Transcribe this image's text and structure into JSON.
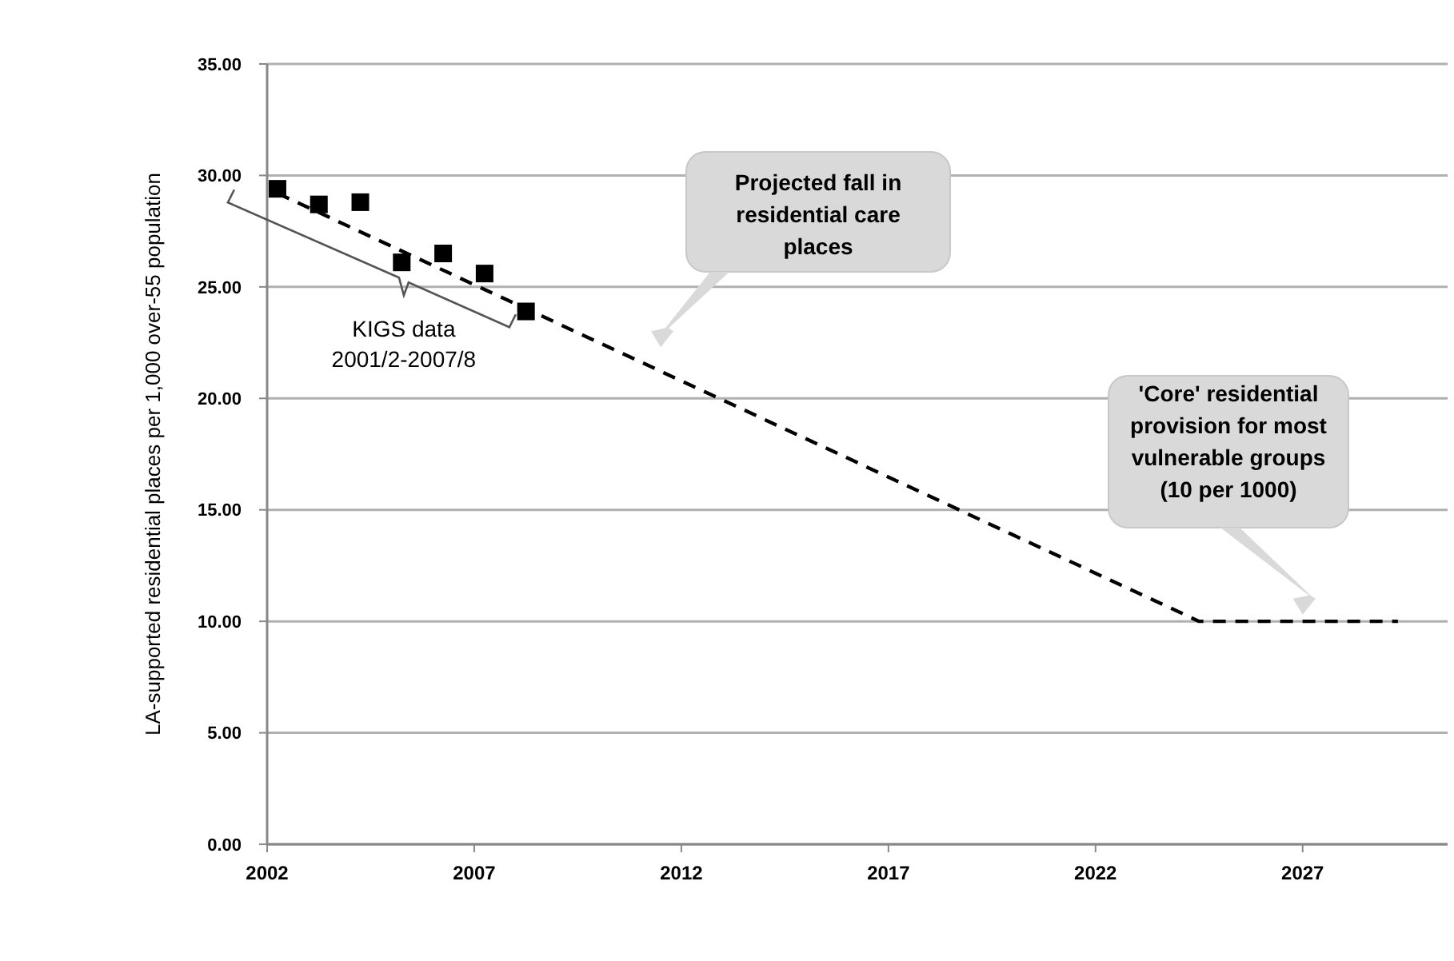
{
  "chart_data": {
    "type": "scatter",
    "ylabel": "LA-supported residential places per 1,000 over-55 population",
    "xlim": [
      2002,
      2030.5
    ],
    "xticks": [
      2002,
      2007,
      2012,
      2017,
      2022,
      2027
    ],
    "ylim": [
      0,
      35
    ],
    "yticks": [
      {
        "value": 0,
        "label": "0.00"
      },
      {
        "value": 5,
        "label": "5.00"
      },
      {
        "value": 10,
        "label": "10.00"
      },
      {
        "value": 15,
        "label": "15.00"
      },
      {
        "value": 20,
        "label": "20.00"
      },
      {
        "value": 25,
        "label": "25.00"
      },
      {
        "value": 30,
        "label": "30.00"
      },
      {
        "value": 35,
        "label": "35.00"
      }
    ],
    "grid": "y",
    "series": [
      {
        "color": "#000000",
        "marker": "square",
        "x": [
          2002.25,
          2003.25,
          2004.25,
          2005.25,
          2006.25,
          2007.25,
          2008.25
        ],
        "values": [
          29.4,
          28.7,
          28.8,
          26.1,
          26.5,
          25.6,
          23.9
        ]
      },
      {
        "type": "line",
        "color": "#000000",
        "line_style": "dashed",
        "marker": "none",
        "x": [
          2002.25,
          2024.5,
          2029.3
        ],
        "values": [
          29.2,
          10,
          10
        ]
      }
    ],
    "annotations": [
      "KIGS data 2001/2-2007/8",
      "Projected fall in residential care places",
      "'Core' residential provision for most vulnerable groups (10 per 1000)"
    ]
  }
}
